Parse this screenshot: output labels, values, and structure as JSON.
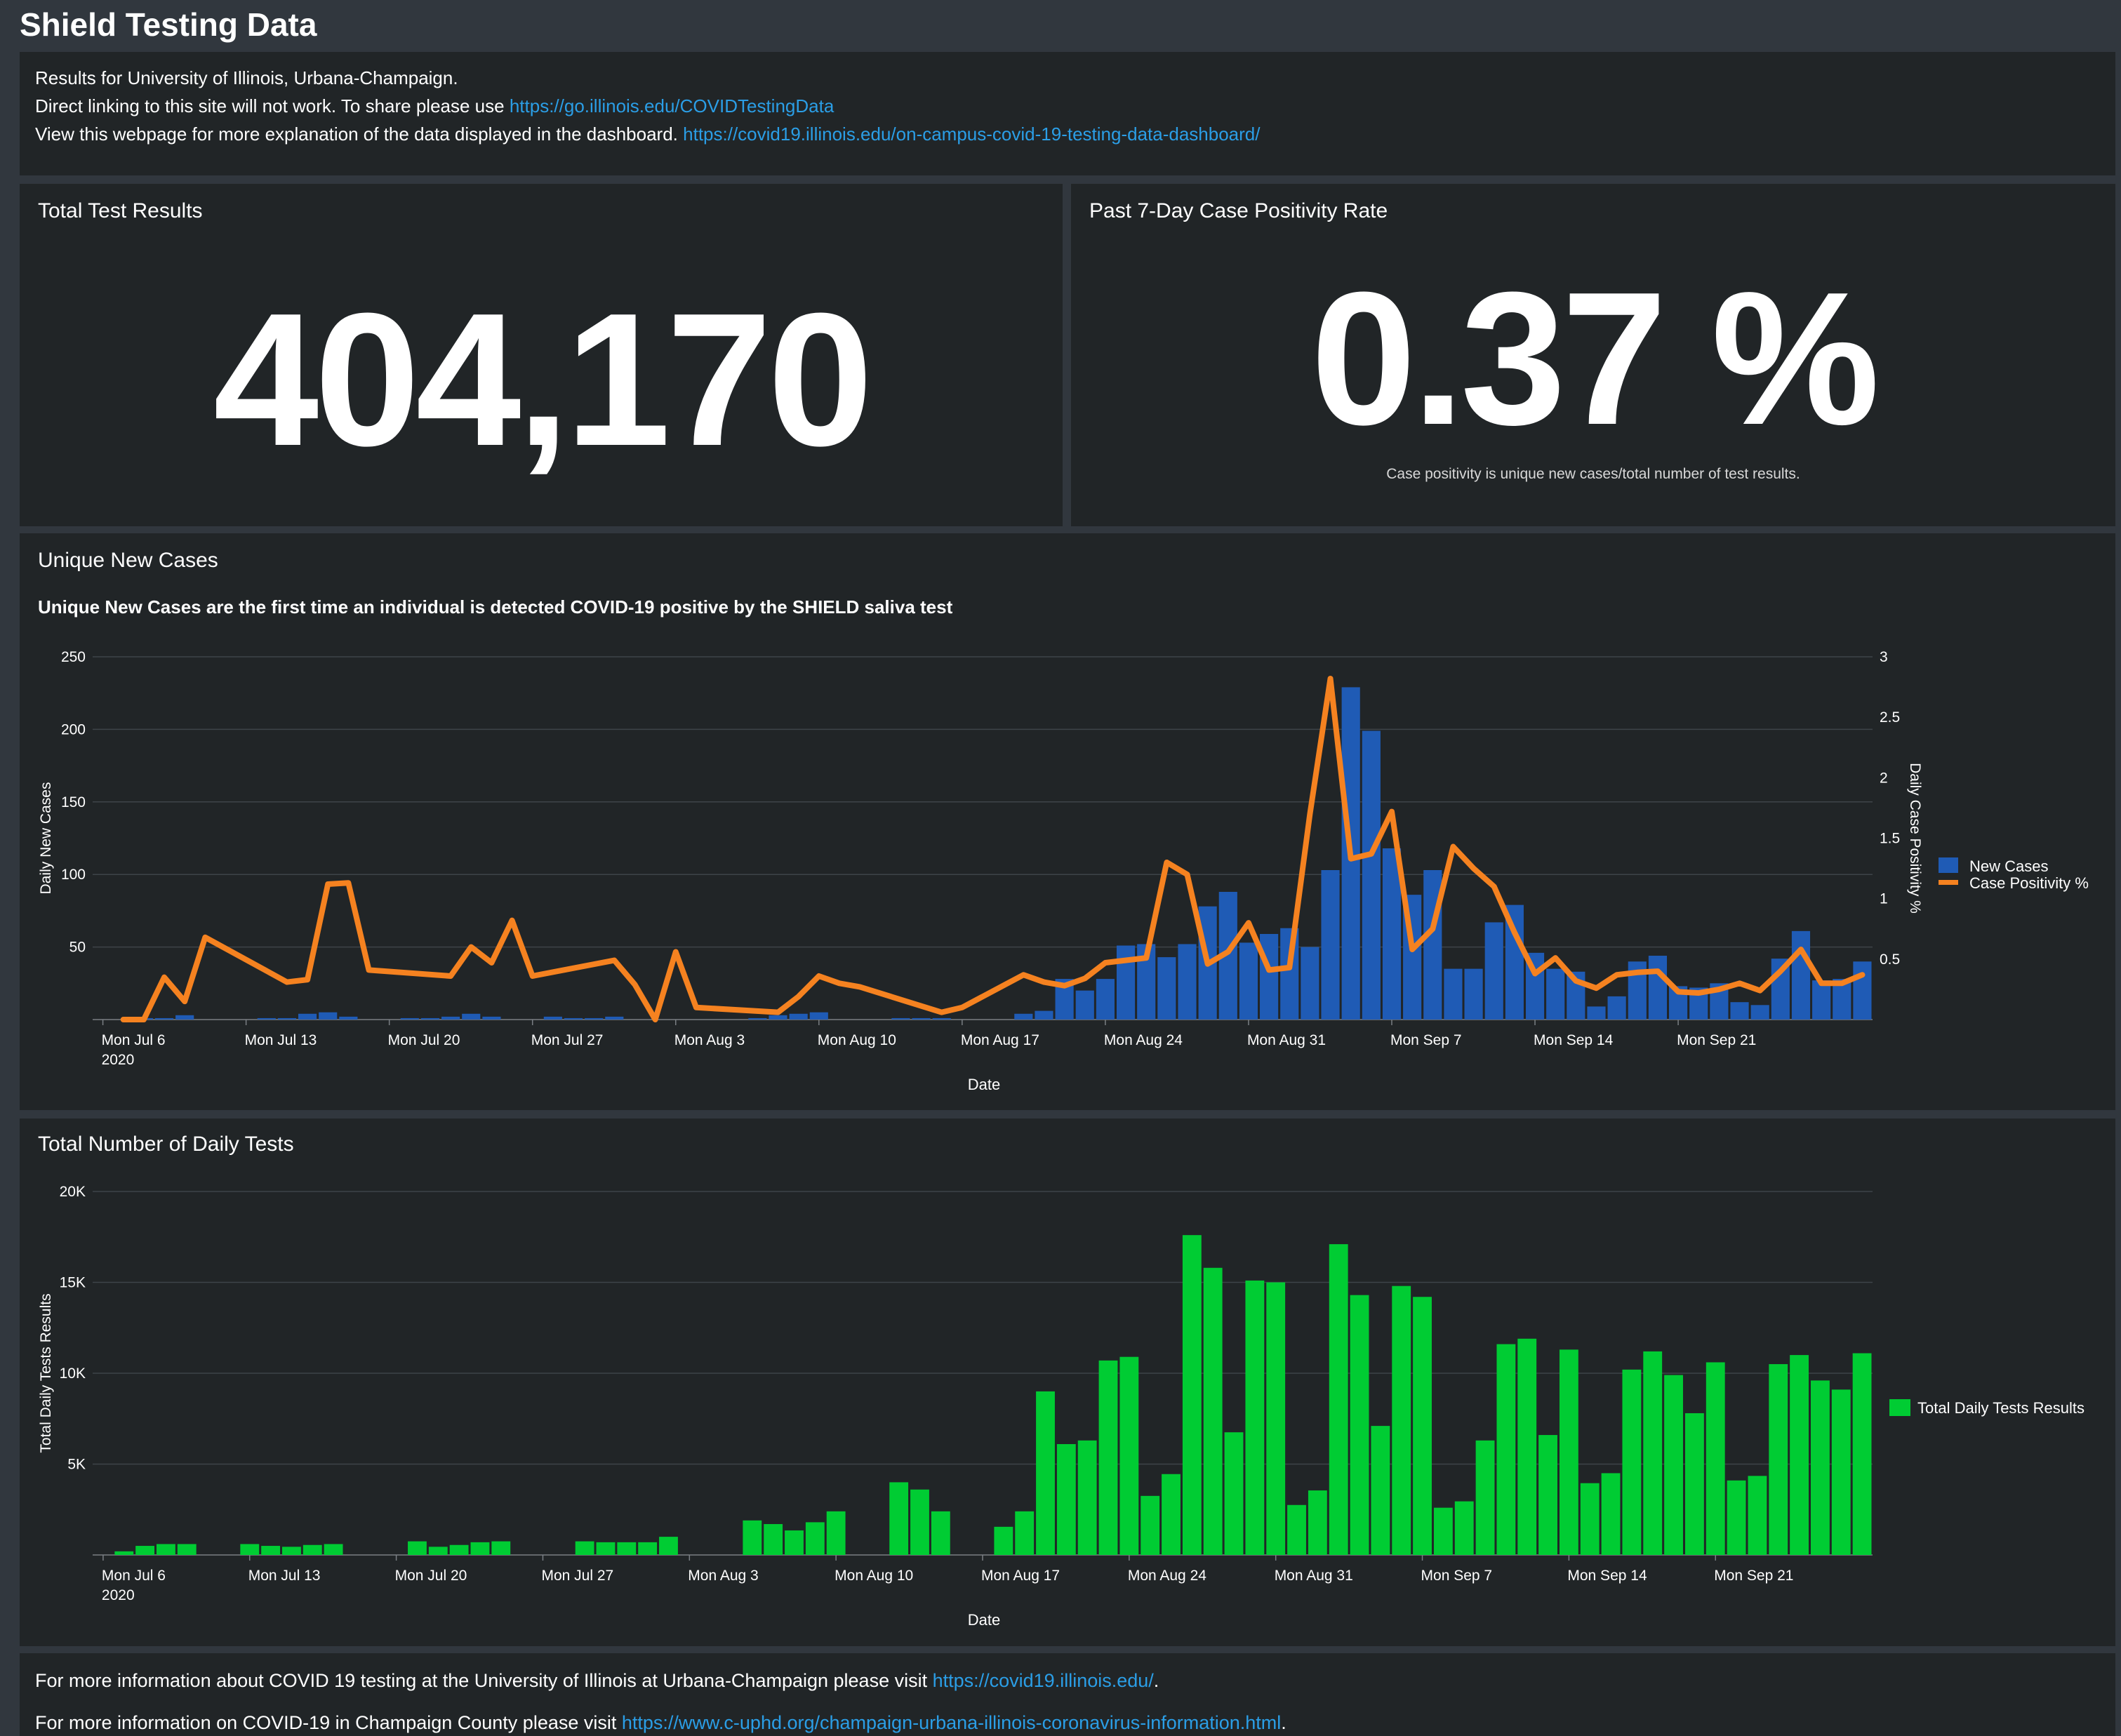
{
  "title": "Shield Testing Data",
  "info": {
    "line1": "Results for University of Illinois, Urbana-Champaign.",
    "line2_text": "Direct linking to this site will not work. To share please use ",
    "line2_link": "https://go.illinois.edu/COVIDTestingData",
    "line3_text": "View this webpage for more explanation of the data displayed in the dashboard. ",
    "line3_link": "https://covid19.illinois.edu/on-campus-covid-19-testing-data-dashboard/"
  },
  "total_tests": {
    "title": "Total Test Results",
    "value": "404,170"
  },
  "positivity": {
    "title": "Past 7-Day Case Positivity Rate",
    "value": "0.37 %",
    "note": "Case positivity is unique new cases/total number of test results."
  },
  "footer": {
    "line1_text": "For more information about COVID 19 testing at the University of Illinois at Urbana-Champaign please visit ",
    "line1_link": "https://covid19.illinois.edu/",
    "line1_end": ".",
    "line2_text": "For more information on COVID-19 in Champaign County please visit ",
    "line2_link": "https://www.c-uphd.org/champaign-urbana-illinois-coronavirus-information.html",
    "line2_end": "."
  },
  "chart_data": [
    {
      "type": "bar",
      "title": "Unique New Cases",
      "subtitle": "Unique New Cases are the first time an individual is detected COVID-19 positive by the SHIELD saliva test",
      "xlabel": "Date",
      "ylabel": "Daily New Cases",
      "y2label": "Daily Case Positivity %",
      "ylim": [
        0,
        250
      ],
      "y2lim": [
        0,
        3
      ],
      "yticks": [
        "50",
        "100",
        "150",
        "200",
        "250"
      ],
      "y2ticks": [
        "0.5",
        "1",
        "1.5",
        "2",
        "2.5",
        "3"
      ],
      "xticks": [
        "Mon Jul 6",
        "Mon Jul 13",
        "Mon Jul 20",
        "Mon Jul 27",
        "Mon Aug 3",
        "Mon Aug 10",
        "Mon Aug 17",
        "Mon Aug 24",
        "Mon Aug 31",
        "Mon Sep 7",
        "Mon Sep 14",
        "Mon Sep 21"
      ],
      "xtick_year": "2020",
      "legend_position": "right",
      "x_start": "2020-07-06",
      "series": [
        {
          "name": "New Cases",
          "type": "bar",
          "color": "#1f5bb5",
          "values": [
            0,
            0,
            1,
            1,
            3,
            0,
            0,
            0,
            1,
            1,
            4,
            5,
            2,
            0,
            0,
            1,
            1,
            2,
            4,
            2,
            0,
            0,
            2,
            1,
            1,
            2,
            0,
            0,
            0,
            0,
            0,
            0,
            1,
            3,
            4,
            5,
            0,
            0,
            0,
            1,
            1,
            1,
            0,
            0,
            0,
            4,
            6,
            28,
            20,
            28,
            51,
            52,
            43,
            52,
            78,
            88,
            53,
            59,
            63,
            50,
            103,
            229,
            199,
            118,
            86,
            103,
            35,
            35,
            67,
            79,
            46,
            35,
            33,
            9,
            16,
            40,
            44,
            23,
            22,
            25,
            12,
            10,
            42,
            61,
            27,
            28,
            40
          ]
        },
        {
          "name": "Case Positivity %",
          "type": "line",
          "color": "#f58220",
          "values": [
            null,
            0,
            0,
            0.35,
            0.15,
            0.68,
            null,
            null,
            null,
            0.31,
            0.33,
            1.12,
            1.13,
            0.41,
            null,
            null,
            null,
            0.36,
            0.6,
            0.47,
            0.82,
            0.36,
            null,
            null,
            null,
            0.49,
            0.29,
            0,
            0.56,
            0.1,
            null,
            null,
            null,
            0.06,
            0.19,
            0.36,
            0.3,
            0.27,
            null,
            null,
            null,
            0.06,
            0.1,
            null,
            null,
            0.37,
            0.31,
            0.28,
            0.34,
            0.47,
            null,
            0.51,
            1.3,
            1.2,
            0.46,
            0.56,
            0.8,
            0.41,
            0.43,
            1.7,
            2.82,
            1.33,
            1.37,
            1.72,
            0.58,
            0.75,
            1.43,
            1.25,
            1.1,
            0.72,
            0.38,
            0.51,
            0.32,
            0.26,
            0.37,
            0.39,
            0.4,
            0.23,
            0.22,
            0.25,
            0.3,
            0.24,
            0.4,
            0.58,
            0.3,
            0.3,
            0.37
          ]
        }
      ]
    },
    {
      "type": "bar",
      "title": "Total Number of Daily Tests",
      "xlabel": "Date",
      "ylabel": "Total Daily Tests Results",
      "ylim": [
        0,
        20000
      ],
      "yticks": [
        "5K",
        "10K",
        "15K",
        "20K"
      ],
      "xticks": [
        "Mon Jul 6",
        "Mon Jul 13",
        "Mon Jul 20",
        "Mon Jul 27",
        "Mon Aug 3",
        "Mon Aug 10",
        "Mon Aug 17",
        "Mon Aug 24",
        "Mon Aug 31",
        "Mon Sep 7",
        "Mon Sep 14",
        "Mon Sep 21"
      ],
      "xtick_year": "2020",
      "legend_position": "right",
      "x_start": "2020-07-06",
      "series": [
        {
          "name": "Total Daily Tests Results",
          "color": "#00cc33",
          "values": [
            0,
            200,
            500,
            600,
            600,
            0,
            0,
            600,
            500,
            450,
            550,
            600,
            0,
            0,
            0,
            750,
            450,
            550,
            700,
            750,
            0,
            0,
            0,
            750,
            700,
            700,
            700,
            1000,
            0,
            0,
            0,
            1900,
            1700,
            1350,
            1800,
            2400,
            0,
            0,
            4000,
            3600,
            2400,
            0,
            0,
            1550,
            2400,
            9000,
            6100,
            6300,
            10700,
            10900,
            3250,
            4450,
            17600,
            15800,
            6750,
            15100,
            15000,
            2750,
            3550,
            17100,
            14300,
            7100,
            14800,
            14200,
            2600,
            2950,
            6300,
            11600,
            11900,
            6600,
            11300,
            3950,
            4500,
            10200,
            11200,
            9900,
            7800,
            10600,
            4100,
            4350,
            10500,
            11000,
            9600,
            9100,
            11100
          ]
        }
      ]
    }
  ]
}
